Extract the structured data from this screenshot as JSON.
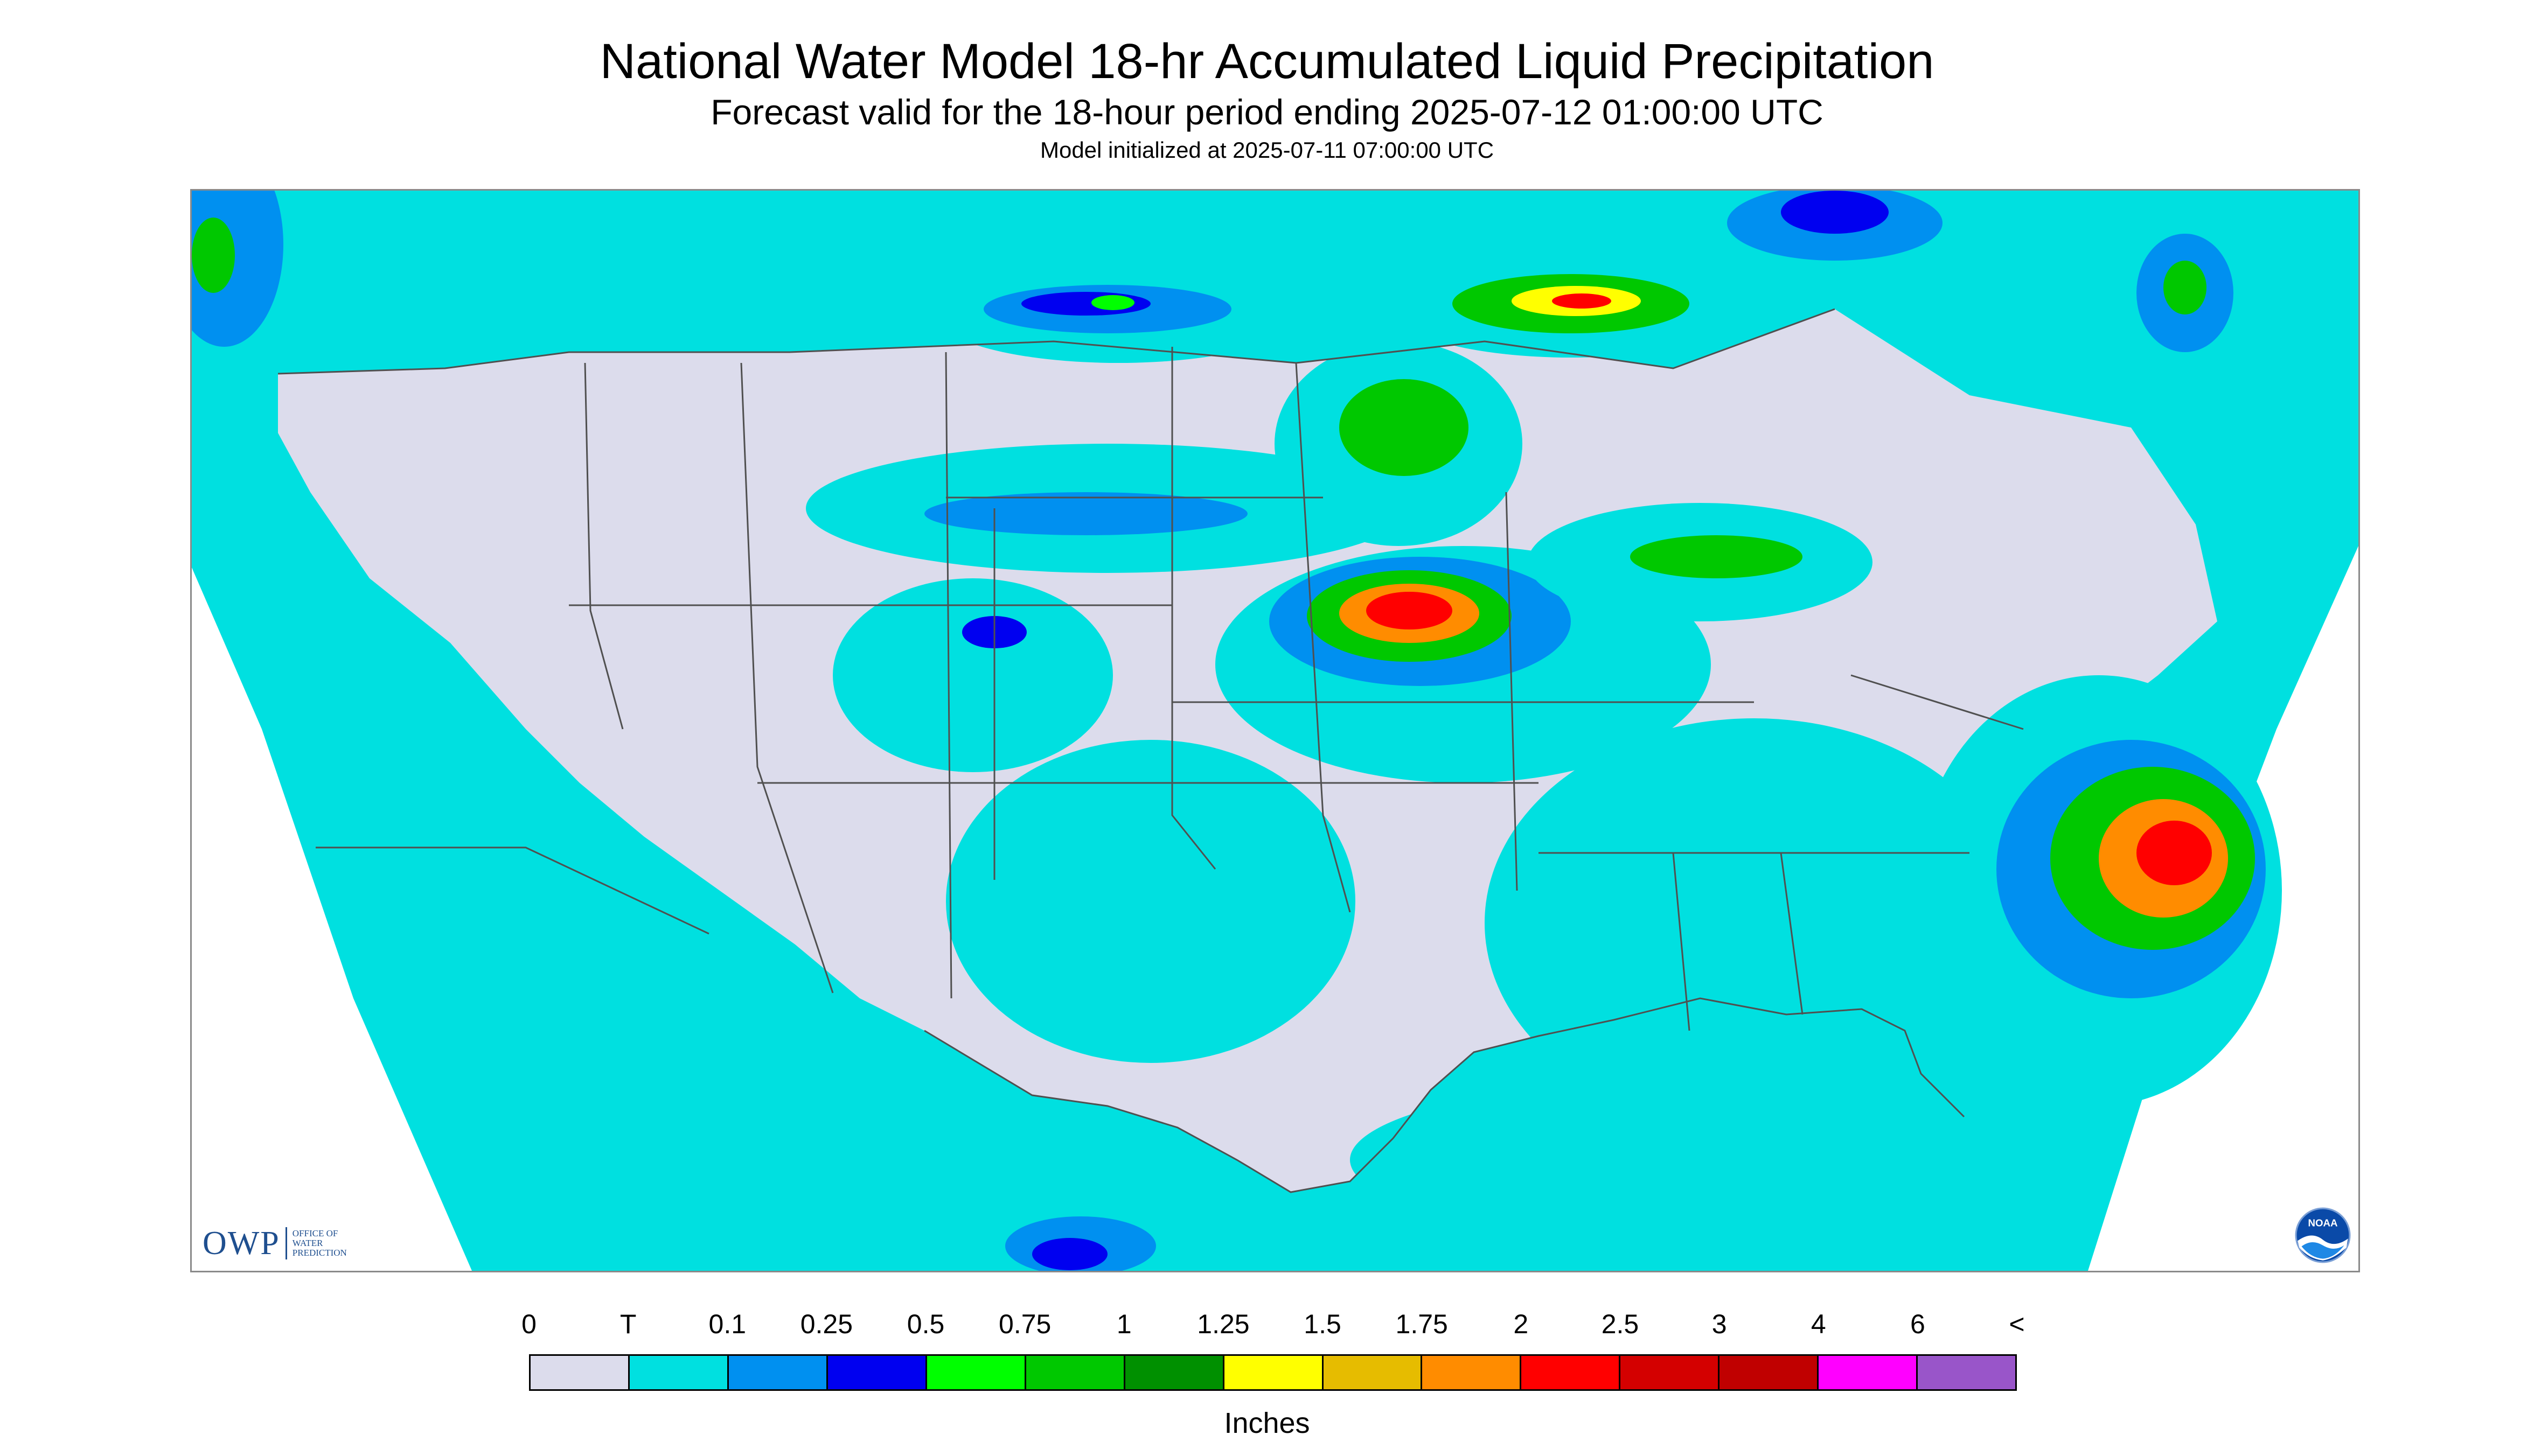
{
  "titles": {
    "main": "National Water Model 18-hr Accumulated Liquid Precipitation",
    "sub": "Forecast valid for the 18-hour period ending 2025-07-12 01:00:00 UTC",
    "init": "Model initialized at 2025-07-11 07:00:00 UTC"
  },
  "logos": {
    "owp_letters": "OWP",
    "owp_words": [
      "OFFICE OF",
      "WATER",
      "PREDICTION"
    ],
    "noaa": "NOAA"
  },
  "legend": {
    "labels": [
      "0",
      "T",
      "0.1",
      "0.25",
      "0.5",
      "0.75",
      "1",
      "1.25",
      "1.5",
      "1.75",
      "2",
      "2.5",
      "3",
      "4",
      "6",
      "<"
    ],
    "colors": [
      "#dcdcec",
      "#00e0e0",
      "#0090f0",
      "#0000f0",
      "#00ff00",
      "#00c800",
      "#009000",
      "#ffff00",
      "#e6bc00",
      "#ff8c00",
      "#ff0000",
      "#d40000",
      "#c00000",
      "#ff00ff",
      "#9955c9"
    ],
    "units": "Inches"
  },
  "colors": {
    "land_no_precip": "#dcdcec",
    "trace": "#00e0e0",
    "outside_domain": "#ffffff",
    "boundaries": "#505050"
  }
}
